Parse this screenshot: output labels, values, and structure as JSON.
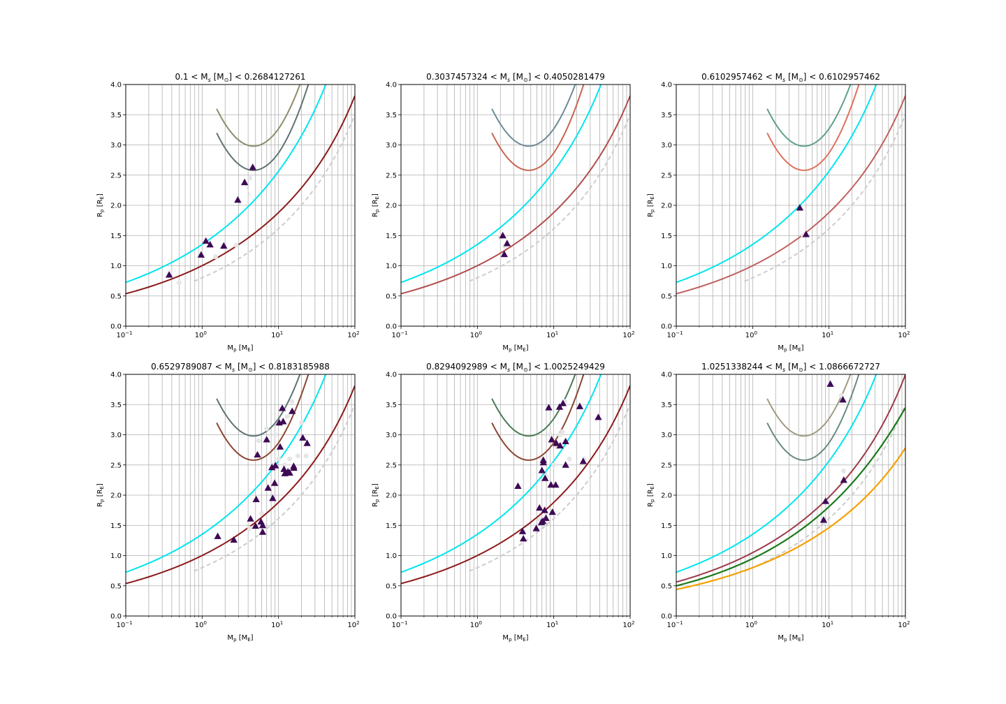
{
  "chart_data": [
    {
      "type": "scatter",
      "title": "0.1 < M$_s$ [M$_\\odot$] < 0.2684127261",
      "title_parts": [
        "0.1 < M",
        "s",
        " [M",
        "⊙",
        "] < 0.2684127261"
      ],
      "xlabel": "M$_p$ [M$_E$]",
      "ylabel": "R$_p$ [R$_E$]",
      "xscale": "log",
      "xlim": [
        0.1,
        100
      ],
      "ylim": [
        0,
        4
      ],
      "grid": true,
      "yticks": [
        "0.0",
        "0.5",
        "1.0",
        "1.5",
        "2.0",
        "2.5",
        "3.0",
        "3.5",
        "4.0"
      ],
      "xticks": [
        "10",
        "10",
        "10",
        "10"
      ],
      "xtick_exponents": [
        "−1",
        "0",
        "1",
        "2"
      ],
      "curve_colors": {
        "cyan": "#00e5ee",
        "lower": "#8b1a1a",
        "gray_dashed": "#cccccc",
        "u1": "#8c8c6a",
        "u2": "#5f7272"
      },
      "points": [
        [
          0.37,
          0.85
        ],
        [
          0.97,
          1.18
        ],
        [
          1.12,
          1.41
        ],
        [
          1.27,
          1.35
        ],
        [
          1.92,
          1.33
        ],
        [
          2.93,
          2.09
        ],
        [
          3.6,
          2.38
        ],
        [
          4.6,
          2.63
        ]
      ],
      "ghost_points": [
        [
          0.5,
          0.72
        ],
        [
          1.5,
          1.15
        ],
        [
          1.9,
          1.3
        ],
        [
          2.8,
          1.34
        ],
        [
          4.2,
          2.45
        ]
      ],
      "ghost_lines": [
        [
          [
            3.6,
            2.38
          ],
          [
            4.3,
            2.15
          ]
        ],
        [
          [
            2.93,
            2.09
          ],
          [
            3.2,
            2.0
          ]
        ]
      ]
    },
    {
      "type": "scatter",
      "title_parts": [
        "0.3037457324 < M",
        "s",
        " [M",
        "⊙",
        "] < 0.4050281479"
      ],
      "xlabel": "M$_p$ [M$_E$]",
      "ylabel": "R$_p$ [R$_E$]",
      "xscale": "log",
      "xlim": [
        0.1,
        100
      ],
      "ylim": [
        0,
        4
      ],
      "grid": true,
      "yticks": [
        "0.0",
        "0.5",
        "1.0",
        "1.5",
        "2.0",
        "2.5",
        "3.0",
        "3.5",
        "4.0"
      ],
      "xticks": [
        "10",
        "10",
        "10",
        "10"
      ],
      "xtick_exponents": [
        "−1",
        "0",
        "1",
        "2"
      ],
      "curve_colors": {
        "cyan": "#00e5ee",
        "lower": "#b24c4c",
        "gray_dashed": "#cccccc",
        "u1": "#6e8a96",
        "u2": "#c86450"
      },
      "points": [
        [
          2.15,
          1.5
        ],
        [
          2.45,
          1.37
        ],
        [
          2.25,
          1.19
        ]
      ],
      "ghost_points": [
        [
          2.0,
          1.47
        ],
        [
          2.3,
          1.32
        ]
      ],
      "ghost_lines": []
    },
    {
      "type": "scatter",
      "title_parts": [
        "0.6102957462 < M",
        "s",
        " [M",
        "⊙",
        "] < 0.6102957462"
      ],
      "xlabel": "M$_p$ [M$_E$]",
      "ylabel": "R$_p$ [R$_E$]",
      "xscale": "log",
      "xlim": [
        0.1,
        100
      ],
      "ylim": [
        0,
        4
      ],
      "grid": true,
      "yticks": [
        "0.0",
        "0.5",
        "1.0",
        "1.5",
        "2.0",
        "2.5",
        "3.0",
        "3.5",
        "4.0"
      ],
      "xticks": [
        "10",
        "10",
        "10",
        "10"
      ],
      "xtick_exponents": [
        "−1",
        "0",
        "1",
        "2"
      ],
      "curve_colors": {
        "cyan": "#00e5ee",
        "lower": "#c06060",
        "gray_dashed": "#cccccc",
        "u1": "#5fa08a",
        "u2": "#e0705a"
      },
      "points": [
        [
          4.15,
          1.96
        ],
        [
          5.0,
          1.52
        ]
      ],
      "ghost_points": [
        [
          4.6,
          1.5
        ]
      ],
      "ghost_lines": []
    },
    {
      "type": "scatter",
      "title_parts": [
        "0.6529789087 < M",
        "s",
        " [M",
        "⊙",
        "] < 0.8183185988"
      ],
      "xlabel": "M$_p$ [M$_E$]",
      "ylabel": "R$_p$ [R$_E$]",
      "xscale": "log",
      "xlim": [
        0.1,
        100
      ],
      "ylim": [
        0,
        4
      ],
      "grid": true,
      "yticks": [
        "0.0",
        "0.5",
        "1.0",
        "1.5",
        "2.0",
        "2.5",
        "3.0",
        "3.5",
        "4.0"
      ],
      "xticks": [
        "10",
        "10",
        "10",
        "10"
      ],
      "xtick_exponents": [
        "−1",
        "0",
        "1",
        "2"
      ],
      "curve_colors": {
        "cyan": "#00e5ee",
        "lower": "#8b1a1a",
        "gray_dashed": "#cccccc",
        "u1": "#5f7272",
        "u2": "#8b4530"
      },
      "points": [
        [
          1.6,
          1.32
        ],
        [
          2.6,
          1.26
        ],
        [
          4.3,
          1.61
        ],
        [
          5.0,
          1.49
        ],
        [
          5.1,
          1.93
        ],
        [
          5.3,
          2.67
        ],
        [
          5.9,
          1.56
        ],
        [
          6.2,
          1.39
        ],
        [
          6.2,
          1.5
        ],
        [
          7.0,
          2.92
        ],
        [
          7.3,
          2.12
        ],
        [
          8.2,
          2.46
        ],
        [
          8.4,
          1.95
        ],
        [
          8.9,
          2.2
        ],
        [
          9.1,
          2.49
        ],
        [
          10.2,
          3.2
        ],
        [
          10.5,
          2.8
        ],
        [
          11.2,
          3.44
        ],
        [
          11.5,
          3.22
        ],
        [
          11.8,
          2.43
        ],
        [
          12.1,
          2.36
        ],
        [
          13.3,
          2.39
        ],
        [
          14.0,
          2.37
        ],
        [
          15.1,
          3.39
        ],
        [
          15.8,
          2.48
        ],
        [
          15.9,
          2.45
        ],
        [
          20.8,
          2.95
        ],
        [
          23.7,
          2.86
        ]
      ],
      "ghost_points": [
        [
          4.2,
          1.45
        ],
        [
          5.5,
          2.9
        ],
        [
          6.0,
          1.7
        ],
        [
          7.0,
          3.1
        ],
        [
          8.5,
          2.5
        ],
        [
          9.0,
          3.0
        ],
        [
          10.0,
          2.6
        ],
        [
          11.0,
          3.2
        ],
        [
          12.0,
          2.5
        ],
        [
          13.0,
          3.3
        ],
        [
          14.0,
          2.6
        ],
        [
          15.0,
          3.55
        ],
        [
          18.0,
          2.65
        ],
        [
          20.0,
          3.2
        ],
        [
          23.0,
          2.65
        ]
      ],
      "ghost_lines": []
    },
    {
      "type": "scatter",
      "title_parts": [
        "0.8294092989 < M",
        "s",
        " [M",
        "⊙",
        "] < 1.0025249429"
      ],
      "xlabel": "M$_p$ [M$_E$]",
      "ylabel": "R$_p$ [R$_E$]",
      "xscale": "log",
      "xlim": [
        0.1,
        100
      ],
      "ylim": [
        0,
        4
      ],
      "grid": true,
      "yticks": [
        "0.0",
        "0.5",
        "1.0",
        "1.5",
        "2.0",
        "2.5",
        "3.0",
        "3.5",
        "4.0"
      ],
      "xticks": [
        "10",
        "10",
        "10",
        "10"
      ],
      "xtick_exponents": [
        "−1",
        "0",
        "1",
        "2"
      ],
      "curve_colors": {
        "cyan": "#00e5ee",
        "lower": "#8b1a1a",
        "gray_dashed": "#cccccc",
        "u1": "#4a7a55",
        "u2": "#8b4530"
      },
      "points": [
        [
          3.4,
          2.15
        ],
        [
          3.9,
          1.4
        ],
        [
          4.0,
          1.28
        ],
        [
          5.9,
          1.45
        ],
        [
          6.5,
          1.79
        ],
        [
          6.9,
          1.55
        ],
        [
          7.0,
          2.41
        ],
        [
          7.2,
          1.57
        ],
        [
          7.3,
          2.58
        ],
        [
          7.3,
          2.54
        ],
        [
          7.6,
          1.75
        ],
        [
          7.7,
          2.28
        ],
        [
          7.9,
          1.62
        ],
        [
          8.6,
          3.45
        ],
        [
          9.2,
          2.17
        ],
        [
          9.4,
          2.92
        ],
        [
          9.6,
          1.72
        ],
        [
          10.6,
          2.17
        ],
        [
          10.8,
          2.86
        ],
        [
          11.9,
          3.46
        ],
        [
          12.1,
          2.82
        ],
        [
          13.2,
          3.52
        ],
        [
          14.3,
          2.89
        ],
        [
          14.3,
          2.5
        ],
        [
          21.9,
          3.47
        ],
        [
          24.3,
          2.56
        ],
        [
          38.3,
          3.29
        ]
      ],
      "ghost_points": [
        [
          4.0,
          1.4
        ],
        [
          6.5,
          1.6
        ],
        [
          7.0,
          2.6
        ],
        [
          8.0,
          2.3
        ],
        [
          9.0,
          3.0
        ],
        [
          10.0,
          2.5
        ],
        [
          11.0,
          2.8
        ],
        [
          12.0,
          3.0
        ],
        [
          13.0,
          3.05
        ],
        [
          14.0,
          3.55
        ],
        [
          16.0,
          2.6
        ],
        [
          25.0,
          2.6
        ]
      ],
      "ghost_lines": []
    },
    {
      "type": "scatter",
      "title_parts": [
        "1.0251338244 < M",
        "s",
        " [M",
        "⊙",
        "] < 1.0866672727"
      ],
      "xlabel": "M$_p$ [M$_E$]",
      "ylabel": "R$_p$ [R$_E$]",
      "xscale": "log",
      "xlim": [
        0.1,
        100
      ],
      "ylim": [
        0,
        4
      ],
      "grid": true,
      "yticks": [
        "0.0",
        "0.5",
        "1.0",
        "1.5",
        "2.0",
        "2.5",
        "3.0",
        "3.5",
        "4.0"
      ],
      "xticks": [
        "10",
        "10",
        "10",
        "10"
      ],
      "xtick_exponents": [
        "−1",
        "0",
        "1",
        "2"
      ],
      "curve_colors": {
        "cyan": "#00e5ee",
        "lower": "#9a3a4a",
        "gray_dashed": "#cccccc",
        "u1": "#a09a80",
        "u2": "#6a8a80",
        "green": "#1a7a1a",
        "orange": "#f5a000"
      },
      "points": [
        [
          8.5,
          1.59
        ],
        [
          9.0,
          1.9
        ],
        [
          10.4,
          3.84
        ],
        [
          15.2,
          3.58
        ],
        [
          15.6,
          2.25
        ]
      ],
      "ghost_points": [
        [
          8.8,
          1.55
        ],
        [
          14.5,
          3.65
        ],
        [
          15.5,
          2.4
        ]
      ],
      "ghost_lines": []
    }
  ]
}
